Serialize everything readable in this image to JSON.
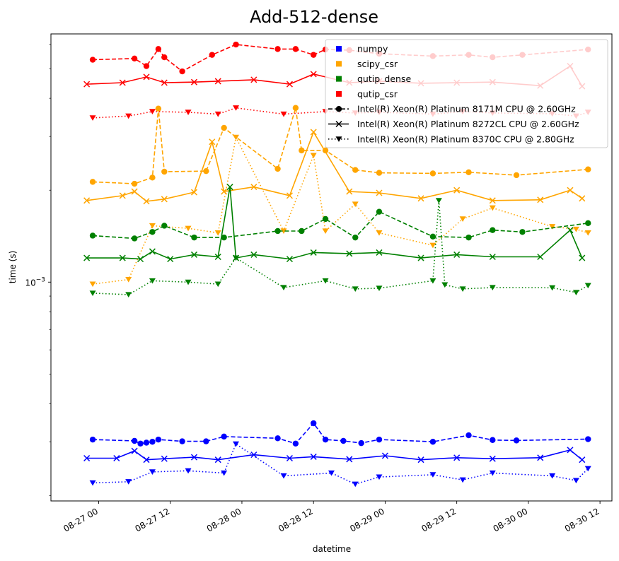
{
  "chart_data": {
    "type": "line",
    "title": "Add-512-dense",
    "xlabel": "datetime",
    "ylabel": "time (s)",
    "yscale": "log",
    "xlim": [
      "2023-08-26 16:00",
      "2023-08-30 14:00"
    ],
    "ylim": [
      0.000192,
      0.0065
    ],
    "xtick_labels": [
      "08-27 00",
      "08-27 12",
      "08-28 00",
      "08-28 12",
      "08-29 00",
      "08-29 12",
      "08-30 00",
      "08-30 12"
    ],
    "ytick_labels": [
      {
        "text": "10",
        "sup": "−3"
      }
    ],
    "legend": {
      "location": "upper right",
      "entries": [
        {
          "label": "numpy",
          "type": "color",
          "color": "#0000ff"
        },
        {
          "label": "scipy_csr",
          "type": "color",
          "color": "#ffa500"
        },
        {
          "label": "qutip_dense",
          "type": "color",
          "color": "#008000"
        },
        {
          "label": "qutip_csr",
          "type": "color",
          "color": "#ff0000"
        },
        {
          "label": "Intel(R) Xeon(R) Platinum 8171M CPU @ 2.60GHz",
          "type": "style",
          "dash": "dashed",
          "marker": "circle"
        },
        {
          "label": "Intel(R) Xeon(R) Platinum 8272CL CPU @ 2.60GHz",
          "type": "style",
          "dash": "solid",
          "marker": "x"
        },
        {
          "label": "Intel(R) Xeon(R) Platinum 8370C CPU @ 2.80GHz",
          "type": "style",
          "dash": "dotted",
          "marker": "triangle-down"
        }
      ]
    },
    "colors": {
      "numpy": "#0000ff",
      "scipy_csr": "#ffa500",
      "qutip_dense": "#008000",
      "qutip_csr": "#ff0000"
    },
    "series": [
      {
        "library": "numpy",
        "cpu": "8171M",
        "points": [
          [
            "2023-08-26 23:00",
            0.000305
          ],
          [
            "2023-08-27 06:00",
            0.000302
          ],
          [
            "2023-08-27 07:00",
            0.000296
          ],
          [
            "2023-08-27 08:00",
            0.000298
          ],
          [
            "2023-08-27 09:00",
            0.0003
          ],
          [
            "2023-08-27 10:00",
            0.000305
          ],
          [
            "2023-08-27 14:00",
            0.000301
          ],
          [
            "2023-08-27 18:00",
            0.000301
          ],
          [
            "2023-08-27 21:00",
            0.000312
          ],
          [
            "2023-08-28 06:00",
            0.000308
          ],
          [
            "2023-08-28 09:00",
            0.000296
          ],
          [
            "2023-08-28 12:00",
            0.000345
          ],
          [
            "2023-08-28 14:00",
            0.000305
          ],
          [
            "2023-08-28 17:00",
            0.000302
          ],
          [
            "2023-08-28 20:00",
            0.000297
          ],
          [
            "2023-08-28 23:00",
            0.000305
          ],
          [
            "2023-08-29 08:00",
            0.0003
          ],
          [
            "2023-08-29 14:00",
            0.000315
          ],
          [
            "2023-08-29 18:00",
            0.000304
          ],
          [
            "2023-08-29 22:00",
            0.000303
          ],
          [
            "2023-08-30 10:00",
            0.000306
          ]
        ]
      },
      {
        "library": "numpy",
        "cpu": "8272CL",
        "points": [
          [
            "2023-08-26 22:00",
            0.000265
          ],
          [
            "2023-08-27 03:00",
            0.000265
          ],
          [
            "2023-08-27 06:00",
            0.00028
          ],
          [
            "2023-08-27 08:00",
            0.000262
          ],
          [
            "2023-08-27 11:00",
            0.000264
          ],
          [
            "2023-08-27 16:00",
            0.000267
          ],
          [
            "2023-08-27 20:00",
            0.000262
          ],
          [
            "2023-08-28 02:00",
            0.000272
          ],
          [
            "2023-08-28 08:00",
            0.000265
          ],
          [
            "2023-08-28 12:00",
            0.000268
          ],
          [
            "2023-08-28 18:00",
            0.000263
          ],
          [
            "2023-08-29 00:00",
            0.00027
          ],
          [
            "2023-08-29 06:00",
            0.000262
          ],
          [
            "2023-08-29 12:00",
            0.000266
          ],
          [
            "2023-08-29 18:00",
            0.000264
          ],
          [
            "2023-08-30 02:00",
            0.000266
          ],
          [
            "2023-08-30 07:00",
            0.000282
          ],
          [
            "2023-08-30 09:00",
            0.000262
          ]
        ]
      },
      {
        "library": "numpy",
        "cpu": "8370C",
        "points": [
          [
            "2023-08-26 23:00",
            0.00022
          ],
          [
            "2023-08-27 05:00",
            0.000222
          ],
          [
            "2023-08-27 09:00",
            0.000239
          ],
          [
            "2023-08-27 15:00",
            0.000241
          ],
          [
            "2023-08-27 21:00",
            0.000237
          ],
          [
            "2023-08-27 23:00",
            0.000295
          ],
          [
            "2023-08-28 07:00",
            0.000232
          ],
          [
            "2023-08-28 15:00",
            0.000237
          ],
          [
            "2023-08-28 19:00",
            0.000218
          ],
          [
            "2023-08-28 23:00",
            0.00023
          ],
          [
            "2023-08-29 08:00",
            0.000234
          ],
          [
            "2023-08-29 13:00",
            0.000225
          ],
          [
            "2023-08-29 18:00",
            0.000237
          ],
          [
            "2023-08-30 04:00",
            0.000232
          ],
          [
            "2023-08-30 08:00",
            0.000224
          ],
          [
            "2023-08-30 10:00",
            0.000245
          ]
        ]
      },
      {
        "library": "scipy_csr",
        "cpu": "8171M",
        "points": [
          [
            "2023-08-26 23:00",
            0.00213
          ],
          [
            "2023-08-27 06:00",
            0.0021
          ],
          [
            "2023-08-27 09:00",
            0.0022
          ],
          [
            "2023-08-27 10:00",
            0.0037
          ],
          [
            "2023-08-27 11:00",
            0.0023
          ],
          [
            "2023-08-27 18:00",
            0.00231
          ],
          [
            "2023-08-27 21:00",
            0.0032
          ],
          [
            "2023-08-28 06:00",
            0.00235
          ],
          [
            "2023-08-28 09:00",
            0.00372
          ],
          [
            "2023-08-28 10:00",
            0.0027
          ],
          [
            "2023-08-28 14:00",
            0.0027
          ],
          [
            "2023-08-28 19:00",
            0.00233
          ],
          [
            "2023-08-28 23:00",
            0.00228
          ],
          [
            "2023-08-29 08:00",
            0.00227
          ],
          [
            "2023-08-29 14:00",
            0.00229
          ],
          [
            "2023-08-29 22:00",
            0.00224
          ],
          [
            "2023-08-30 10:00",
            0.00234
          ]
        ]
      },
      {
        "library": "scipy_csr",
        "cpu": "8272CL",
        "points": [
          [
            "2023-08-26 22:00",
            0.00185
          ],
          [
            "2023-08-27 04:00",
            0.00192
          ],
          [
            "2023-08-27 06:00",
            0.00198
          ],
          [
            "2023-08-27 08:00",
            0.00184
          ],
          [
            "2023-08-27 11:00",
            0.00187
          ],
          [
            "2023-08-27 16:00",
            0.00197
          ],
          [
            "2023-08-27 19:00",
            0.00288
          ],
          [
            "2023-08-27 21:00",
            0.00198
          ],
          [
            "2023-08-28 02:00",
            0.00205
          ],
          [
            "2023-08-28 08:00",
            0.00192
          ],
          [
            "2023-08-28 12:00",
            0.0031
          ],
          [
            "2023-08-28 18:00",
            0.00198
          ],
          [
            "2023-08-28 23:00",
            0.00196
          ],
          [
            "2023-08-29 06:00",
            0.00188
          ],
          [
            "2023-08-29 12:00",
            0.002
          ],
          [
            "2023-08-29 18:00",
            0.00185
          ],
          [
            "2023-08-30 02:00",
            0.00186
          ],
          [
            "2023-08-30 07:00",
            0.002
          ],
          [
            "2023-08-30 09:00",
            0.00188
          ]
        ]
      },
      {
        "library": "scipy_csr",
        "cpu": "8370C",
        "points": [
          [
            "2023-08-26 23:00",
            0.000985
          ],
          [
            "2023-08-27 05:00",
            0.00102
          ],
          [
            "2023-08-27 09:00",
            0.00153
          ],
          [
            "2023-08-27 15:00",
            0.0015
          ],
          [
            "2023-08-27 20:00",
            0.00145
          ],
          [
            "2023-08-27 23:00",
            0.00298
          ],
          [
            "2023-08-28 07:00",
            0.00147
          ],
          [
            "2023-08-28 12:00",
            0.0026
          ],
          [
            "2023-08-28 14:00",
            0.00147
          ],
          [
            "2023-08-28 19:00",
            0.0018
          ],
          [
            "2023-08-28 23:00",
            0.00145
          ],
          [
            "2023-08-29 08:00",
            0.00132
          ],
          [
            "2023-08-29 13:00",
            0.00161
          ],
          [
            "2023-08-29 18:00",
            0.00175
          ],
          [
            "2023-08-30 04:00",
            0.00152
          ],
          [
            "2023-08-30 08:00",
            0.00149
          ],
          [
            "2023-08-30 10:00",
            0.00145
          ]
        ]
      },
      {
        "library": "qutip_dense",
        "cpu": "8171M",
        "points": [
          [
            "2023-08-26 23:00",
            0.00142
          ],
          [
            "2023-08-27 06:00",
            0.00139
          ],
          [
            "2023-08-27 09:00",
            0.00146
          ],
          [
            "2023-08-27 11:00",
            0.00153
          ],
          [
            "2023-08-27 16:00",
            0.0014
          ],
          [
            "2023-08-27 21:00",
            0.0014
          ],
          [
            "2023-08-28 06:00",
            0.00147
          ],
          [
            "2023-08-28 10:00",
            0.00147
          ],
          [
            "2023-08-28 14:00",
            0.00161
          ],
          [
            "2023-08-28 19:00",
            0.0014
          ],
          [
            "2023-08-28 23:00",
            0.0017
          ],
          [
            "2023-08-29 08:00",
            0.00141
          ],
          [
            "2023-08-29 14:00",
            0.0014
          ],
          [
            "2023-08-29 18:00",
            0.00148
          ],
          [
            "2023-08-29 23:00",
            0.00146
          ],
          [
            "2023-08-30 10:00",
            0.00156
          ]
        ]
      },
      {
        "library": "qutip_dense",
        "cpu": "8272CL",
        "points": [
          [
            "2023-08-26 22:00",
            0.0012
          ],
          [
            "2023-08-27 04:00",
            0.0012
          ],
          [
            "2023-08-27 07:00",
            0.00119
          ],
          [
            "2023-08-27 09:00",
            0.00126
          ],
          [
            "2023-08-27 12:00",
            0.00119
          ],
          [
            "2023-08-27 16:00",
            0.00123
          ],
          [
            "2023-08-27 20:00",
            0.00121
          ],
          [
            "2023-08-27 22:00",
            0.00205
          ],
          [
            "2023-08-27 23:00",
            0.0012
          ],
          [
            "2023-08-28 02:00",
            0.00123
          ],
          [
            "2023-08-28 08:00",
            0.00119
          ],
          [
            "2023-08-28 12:00",
            0.00125
          ],
          [
            "2023-08-28 18:00",
            0.00124
          ],
          [
            "2023-08-28 23:00",
            0.00125
          ],
          [
            "2023-08-29 06:00",
            0.0012
          ],
          [
            "2023-08-29 12:00",
            0.00123
          ],
          [
            "2023-08-29 18:00",
            0.00121
          ],
          [
            "2023-08-30 02:00",
            0.00121
          ],
          [
            "2023-08-30 07:00",
            0.00148
          ],
          [
            "2023-08-30 09:00",
            0.0012
          ]
        ]
      },
      {
        "library": "qutip_dense",
        "cpu": "8370C",
        "points": [
          [
            "2023-08-26 23:00",
            0.00092
          ],
          [
            "2023-08-27 05:00",
            0.00091
          ],
          [
            "2023-08-27 09:00",
            0.00101
          ],
          [
            "2023-08-27 15:00",
            0.001
          ],
          [
            "2023-08-27 20:00",
            0.000985
          ],
          [
            "2023-08-27 23:00",
            0.0012
          ],
          [
            "2023-08-28 07:00",
            0.00096
          ],
          [
            "2023-08-28 14:00",
            0.00101
          ],
          [
            "2023-08-28 19:00",
            0.00095
          ],
          [
            "2023-08-28 23:00",
            0.000955
          ],
          [
            "2023-08-29 08:00",
            0.00101
          ],
          [
            "2023-08-29 09:00",
            0.00185
          ],
          [
            "2023-08-29 10:00",
            0.00098
          ],
          [
            "2023-08-29 13:00",
            0.00095
          ],
          [
            "2023-08-29 18:00",
            0.00096
          ],
          [
            "2023-08-30 04:00",
            0.000958
          ],
          [
            "2023-08-30 08:00",
            0.000925
          ],
          [
            "2023-08-30 10:00",
            0.000975
          ]
        ]
      },
      {
        "library": "qutip_csr",
        "cpu": "8171M",
        "points": [
          [
            "2023-08-26 23:00",
            0.00535
          ],
          [
            "2023-08-27 06:00",
            0.0054
          ],
          [
            "2023-08-27 08:00",
            0.0051
          ],
          [
            "2023-08-27 10:00",
            0.0058
          ],
          [
            "2023-08-27 11:00",
            0.00545
          ],
          [
            "2023-08-27 14:00",
            0.0049
          ],
          [
            "2023-08-27 19:00",
            0.00555
          ],
          [
            "2023-08-27 23:00",
            0.006
          ],
          [
            "2023-08-28 06:00",
            0.0058
          ],
          [
            "2023-08-28 09:00",
            0.0058
          ],
          [
            "2023-08-28 12:00",
            0.00555
          ],
          [
            "2023-08-28 14:00",
            0.00578
          ],
          [
            "2023-08-28 18:00",
            0.00575
          ],
          [
            "2023-08-28 23:00",
            0.0056
          ],
          [
            "2023-08-29 08:00",
            0.0055
          ],
          [
            "2023-08-29 14:00",
            0.00555
          ],
          [
            "2023-08-29 18:00",
            0.00545
          ],
          [
            "2023-08-29 23:00",
            0.00555
          ],
          [
            "2023-08-30 10:00",
            0.00578
          ]
        ]
      },
      {
        "library": "qutip_csr",
        "cpu": "8272CL",
        "points": [
          [
            "2023-08-26 22:00",
            0.00445
          ],
          [
            "2023-08-27 04:00",
            0.0045
          ],
          [
            "2023-08-27 08:00",
            0.0047
          ],
          [
            "2023-08-27 11:00",
            0.0045
          ],
          [
            "2023-08-27 16:00",
            0.00452
          ],
          [
            "2023-08-27 20:00",
            0.00455
          ],
          [
            "2023-08-28 02:00",
            0.0046
          ],
          [
            "2023-08-28 08:00",
            0.00445
          ],
          [
            "2023-08-28 12:00",
            0.0048
          ],
          [
            "2023-08-28 18:00",
            0.0045
          ],
          [
            "2023-08-28 23:00",
            0.00455
          ],
          [
            "2023-08-29 06:00",
            0.00448
          ],
          [
            "2023-08-29 12:00",
            0.0045
          ],
          [
            "2023-08-29 18:00",
            0.00452
          ],
          [
            "2023-08-30 02:00",
            0.0044
          ],
          [
            "2023-08-30 07:00",
            0.0051
          ],
          [
            "2023-08-30 09:00",
            0.00438
          ]
        ]
      },
      {
        "library": "qutip_csr",
        "cpu": "8370C",
        "points": [
          [
            "2023-08-26 23:00",
            0.00345
          ],
          [
            "2023-08-27 05:00",
            0.0035
          ],
          [
            "2023-08-27 09:00",
            0.00362
          ],
          [
            "2023-08-27 15:00",
            0.0036
          ],
          [
            "2023-08-27 20:00",
            0.00355
          ],
          [
            "2023-08-27 23:00",
            0.00372
          ],
          [
            "2023-08-28 07:00",
            0.00355
          ],
          [
            "2023-08-28 14:00",
            0.00362
          ],
          [
            "2023-08-28 19:00",
            0.00358
          ],
          [
            "2023-08-28 23:00",
            0.0036
          ],
          [
            "2023-08-29 08:00",
            0.00355
          ],
          [
            "2023-08-29 13:00",
            0.00362
          ],
          [
            "2023-08-29 18:00",
            0.00358
          ],
          [
            "2023-08-30 04:00",
            0.00356
          ],
          [
            "2023-08-30 08:00",
            0.0035
          ],
          [
            "2023-08-30 10:00",
            0.0036
          ]
        ]
      }
    ]
  }
}
